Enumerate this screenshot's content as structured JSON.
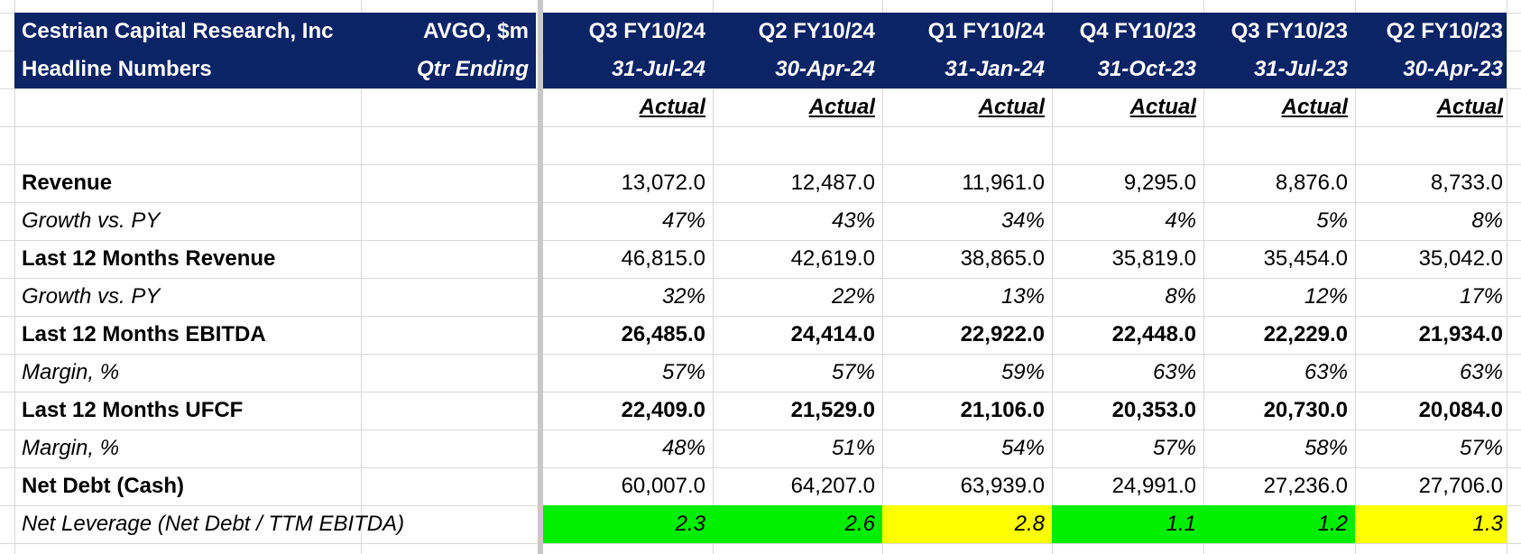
{
  "header": {
    "company": "Cestrian Capital Research, Inc",
    "subtitle": "Headline Numbers",
    "ticker": "AVGO, $m",
    "qtr_label": "Qtr Ending"
  },
  "columns": [
    {
      "quarter": "Q3 FY10/24",
      "date": "31-Jul-24",
      "status": "Actual"
    },
    {
      "quarter": "Q2 FY10/24",
      "date": "30-Apr-24",
      "status": "Actual"
    },
    {
      "quarter": "Q1 FY10/24",
      "date": "31-Jan-24",
      "status": "Actual"
    },
    {
      "quarter": "Q4 FY10/23",
      "date": "31-Oct-23",
      "status": "Actual"
    },
    {
      "quarter": "Q3 FY10/23",
      "date": "31-Jul-23",
      "status": "Actual"
    },
    {
      "quarter": "Q2 FY10/23",
      "date": "30-Apr-23",
      "status": "Actual"
    }
  ],
  "rows": [
    {
      "label": "Revenue",
      "style": "bold-label",
      "values": [
        "13,072.0",
        "12,487.0",
        "11,961.0",
        "9,295.0",
        "8,876.0",
        "8,733.0"
      ]
    },
    {
      "label": "Growth vs. PY",
      "style": "italic",
      "values": [
        "47%",
        "43%",
        "34%",
        "4%",
        "5%",
        "8%"
      ]
    },
    {
      "label": "Last 12 Months Revenue",
      "style": "bold-label",
      "values": [
        "46,815.0",
        "42,619.0",
        "38,865.0",
        "35,819.0",
        "35,454.0",
        "35,042.0"
      ]
    },
    {
      "label": "Growth vs. PY",
      "style": "italic",
      "values": [
        "32%",
        "22%",
        "13%",
        "8%",
        "12%",
        "17%"
      ]
    },
    {
      "label": "Last 12 Months EBITDA",
      "style": "bold",
      "values": [
        "26,485.0",
        "24,414.0",
        "22,922.0",
        "22,448.0",
        "22,229.0",
        "21,934.0"
      ]
    },
    {
      "label": "Margin, %",
      "style": "italic",
      "values": [
        "57%",
        "57%",
        "59%",
        "63%",
        "63%",
        "63%"
      ]
    },
    {
      "label": "Last 12 Months UFCF",
      "style": "bold",
      "values": [
        "22,409.0",
        "21,529.0",
        "21,106.0",
        "20,353.0",
        "20,730.0",
        "20,084.0"
      ]
    },
    {
      "label": "Margin, %",
      "style": "italic-values",
      "values": [
        "48%",
        "51%",
        "54%",
        "57%",
        "58%",
        "57%"
      ]
    },
    {
      "label": "Net Debt (Cash)",
      "style": "bold-label",
      "values": [
        "60,007.0",
        "64,207.0",
        "63,939.0",
        "24,991.0",
        "27,236.0",
        "27,706.0"
      ]
    },
    {
      "label": "Net Leverage (Net Debt / TTM EBITDA)",
      "style": "italic",
      "values": [
        "2.3",
        "2.6",
        "2.8",
        "1.1",
        "1.2",
        "1.3"
      ],
      "highlights": [
        "green",
        "green",
        "yellow",
        "green",
        "green",
        "yellow"
      ],
      "highlight_colors": {
        "green": "#00ee00",
        "yellow": "#ffff00"
      }
    }
  ],
  "colors": {
    "header_bg": "#0b2466",
    "header_text": "#ffffff"
  }
}
